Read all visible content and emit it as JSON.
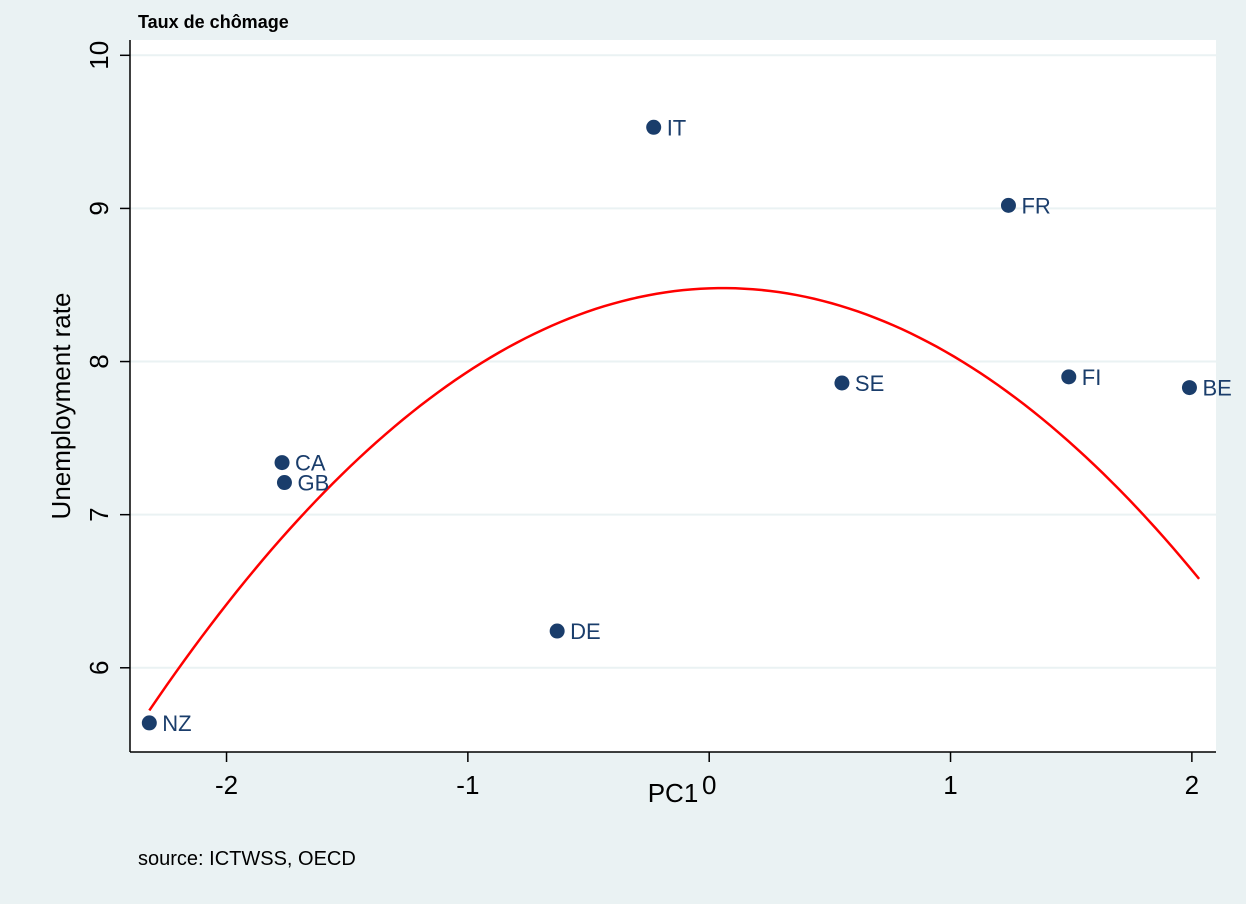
{
  "chart_data": {
    "type": "scatter",
    "title": "Taux de chômage",
    "xlabel": "PC1",
    "ylabel": "Unemployment rate",
    "source": "source: ICTWSS, OECD",
    "xlim": [
      -2.4,
      2.1
    ],
    "ylim": [
      5.45,
      10.1
    ],
    "xticks": [
      "-2",
      "-1",
      "0",
      "1",
      "2"
    ],
    "xtick_values": [
      -2,
      -1,
      0,
      1,
      2
    ],
    "yticks": [
      "6",
      "7",
      "8",
      "9",
      "10"
    ],
    "ytick_values": [
      6,
      7,
      8,
      9,
      10
    ],
    "grid": true,
    "points": [
      {
        "label": "NZ",
        "x": -2.32,
        "y": 5.64
      },
      {
        "label": "CA",
        "x": -1.77,
        "y": 7.34
      },
      {
        "label": "GB",
        "x": -1.76,
        "y": 7.21
      },
      {
        "label": "DE",
        "x": -0.63,
        "y": 6.24
      },
      {
        "label": "IT",
        "x": -0.23,
        "y": 9.53
      },
      {
        "label": "SE",
        "x": 0.55,
        "y": 7.86
      },
      {
        "label": "FR",
        "x": 1.24,
        "y": 9.02
      },
      {
        "label": "FI",
        "x": 1.49,
        "y": 7.9
      },
      {
        "label": "BE",
        "x": 1.99,
        "y": 7.83
      }
    ],
    "fit": {
      "type": "quadratic",
      "a": -0.488,
      "b": 0.056,
      "c": 8.478,
      "x_range": [
        -2.32,
        2.03
      ]
    },
    "colors": {
      "points": "#1a3d6b",
      "fit_line": "#ff0000",
      "plot_background": "#ffffff",
      "outer_background": "#eaf2f3",
      "grid": "#eaf2f3"
    }
  }
}
